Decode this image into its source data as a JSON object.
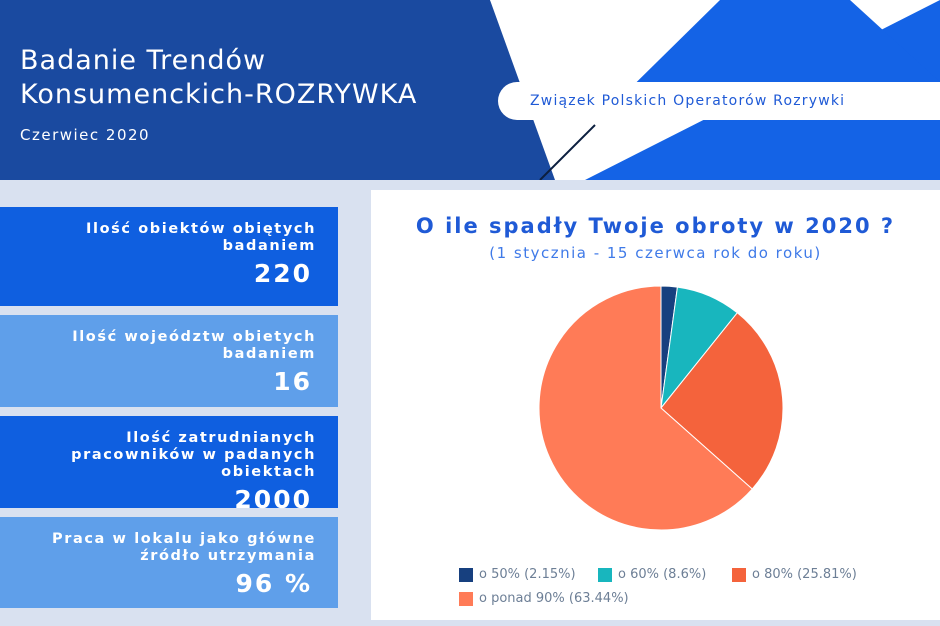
{
  "header": {
    "title_line1": "Badanie Trendów",
    "title_line2": "Konsumenckich-ROZRYWKA",
    "date": "Czerwiec 2020",
    "organization": "Związek Polskich Operatorów Rozrywki",
    "colors": {
      "navy": "#1a4aa0",
      "blue": "#1463e6"
    }
  },
  "stats": [
    {
      "label": "Ilość obiektów obiętych badaniem",
      "value": "220"
    },
    {
      "label": "Ilość wojeództw obietych badaniem",
      "value": "16"
    },
    {
      "label": "Ilość zatrudnianych pracowników w padanych obiektach",
      "value": "2000"
    },
    {
      "label": "Praca w lokalu jako główne źródło utrzymania",
      "value": "96 %"
    }
  ],
  "chart_data": {
    "type": "pie",
    "title": "O ile spadły Twoje obroty w 2020 ?",
    "subtitle": "(1 stycznia - 15 czerwca rok do roku)",
    "slices": [
      {
        "label": "o 50% (2.15%)",
        "value": 2.15,
        "color": "#17407f"
      },
      {
        "label": "o 60% (8.6%)",
        "value": 8.6,
        "color": "#18b6be"
      },
      {
        "label": "o 80% (25.81%)",
        "value": 25.81,
        "color": "#f4633c"
      },
      {
        "label": "o ponad 90% (63.44%)",
        "value": 63.44,
        "color": "#ff7b57"
      }
    ],
    "legend_position": "bottom"
  }
}
